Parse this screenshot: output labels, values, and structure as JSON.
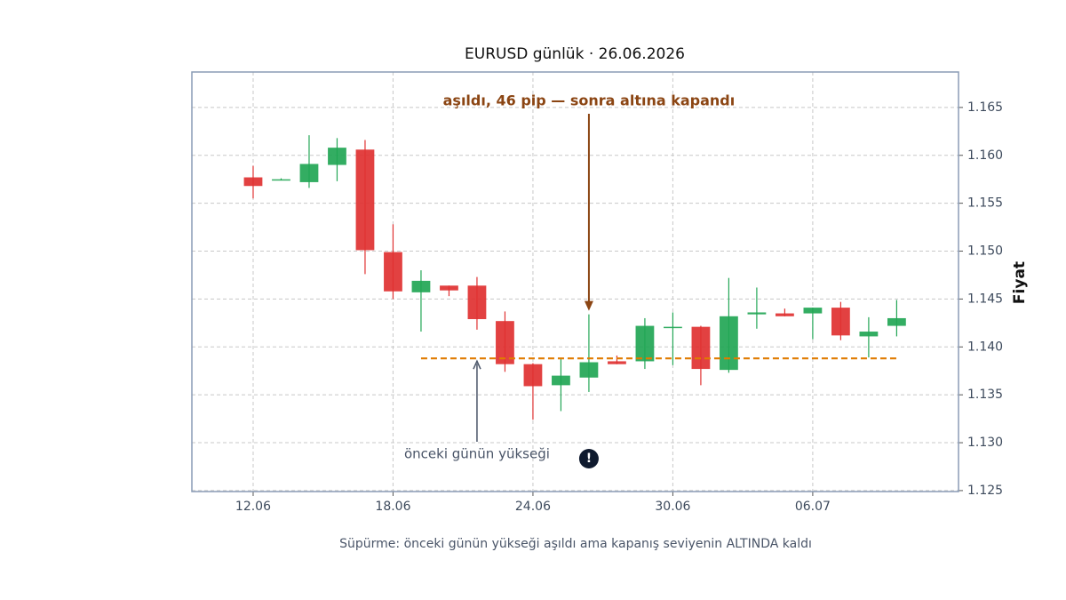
{
  "chart_data": {
    "type": "candlestick",
    "title": "EURUSD günlük · 26.06.2026",
    "y_label": "Fiyat",
    "caption": "Süpürme: önceki günün yükseği aşıldı ama kapanış seviyenin ALTINDA kaldı",
    "categories": [
      "12.06",
      null,
      null,
      null,
      null,
      "18.06",
      null,
      null,
      null,
      null,
      "24.06",
      null,
      null,
      null,
      null,
      "30.06",
      null,
      null,
      null,
      null,
      "06.07",
      null,
      null,
      null
    ],
    "open": [
      1.1577,
      1.1575,
      1.1572,
      1.159,
      1.1606,
      1.1499,
      1.1457,
      1.1464,
      1.1464,
      1.1427,
      1.1382,
      1.136,
      1.1368,
      1.1385,
      1.1385,
      1.142,
      1.1421,
      1.1376,
      1.1434,
      1.1435,
      1.1435,
      1.1441,
      1.1411,
      1.1422
    ],
    "high": [
      1.1589,
      1.1576,
      1.1621,
      1.1618,
      1.1616,
      1.1528,
      1.148,
      1.1464,
      1.1473,
      1.1437,
      1.1383,
      1.1388,
      1.1434,
      1.1391,
      1.143,
      1.1436,
      1.1422,
      1.1472,
      1.1462,
      1.144,
      1.1441,
      1.1447,
      1.1431,
      1.1449
    ],
    "low": [
      1.1555,
      1.1574,
      1.1566,
      1.1573,
      1.1476,
      1.145,
      1.1416,
      1.1453,
      1.1418,
      1.1374,
      1.1324,
      1.1333,
      1.1353,
      1.1382,
      1.1377,
      1.1381,
      1.136,
      1.1373,
      1.1419,
      1.1432,
      1.1408,
      1.1407,
      1.1389,
      1.1411
    ],
    "close": [
      1.1568,
      1.1575,
      1.1591,
      1.1608,
      1.1501,
      1.1458,
      1.1469,
      1.1459,
      1.1429,
      1.1382,
      1.1359,
      1.137,
      1.1384,
      1.1382,
      1.1422,
      1.1421,
      1.1377,
      1.1432,
      1.1436,
      1.1432,
      1.1441,
      1.1412,
      1.1416,
      1.143
    ],
    "up_color": "#22a655",
    "down_color": "#e03131",
    "level": {
      "value": 1.1388,
      "color": "#e07b00",
      "label": "önceki günün yükseği"
    },
    "annotation": {
      "text": "aşıldı, 46 pip — sonra altına kapandı",
      "color": "#8b4513",
      "marker": "!"
    },
    "ylim": [
      1.1249,
      1.1687
    ],
    "yticks": [
      1.125,
      {
        "value": 1.13,
        "label": "1.130"
      },
      1.135,
      {
        "value": 1.14,
        "label": "1.140"
      },
      1.145,
      {
        "value": 1.15,
        "label": "1.150"
      },
      1.155,
      {
        "value": 1.16,
        "label": "1.160"
      },
      1.165
    ],
    "grid": true
  }
}
